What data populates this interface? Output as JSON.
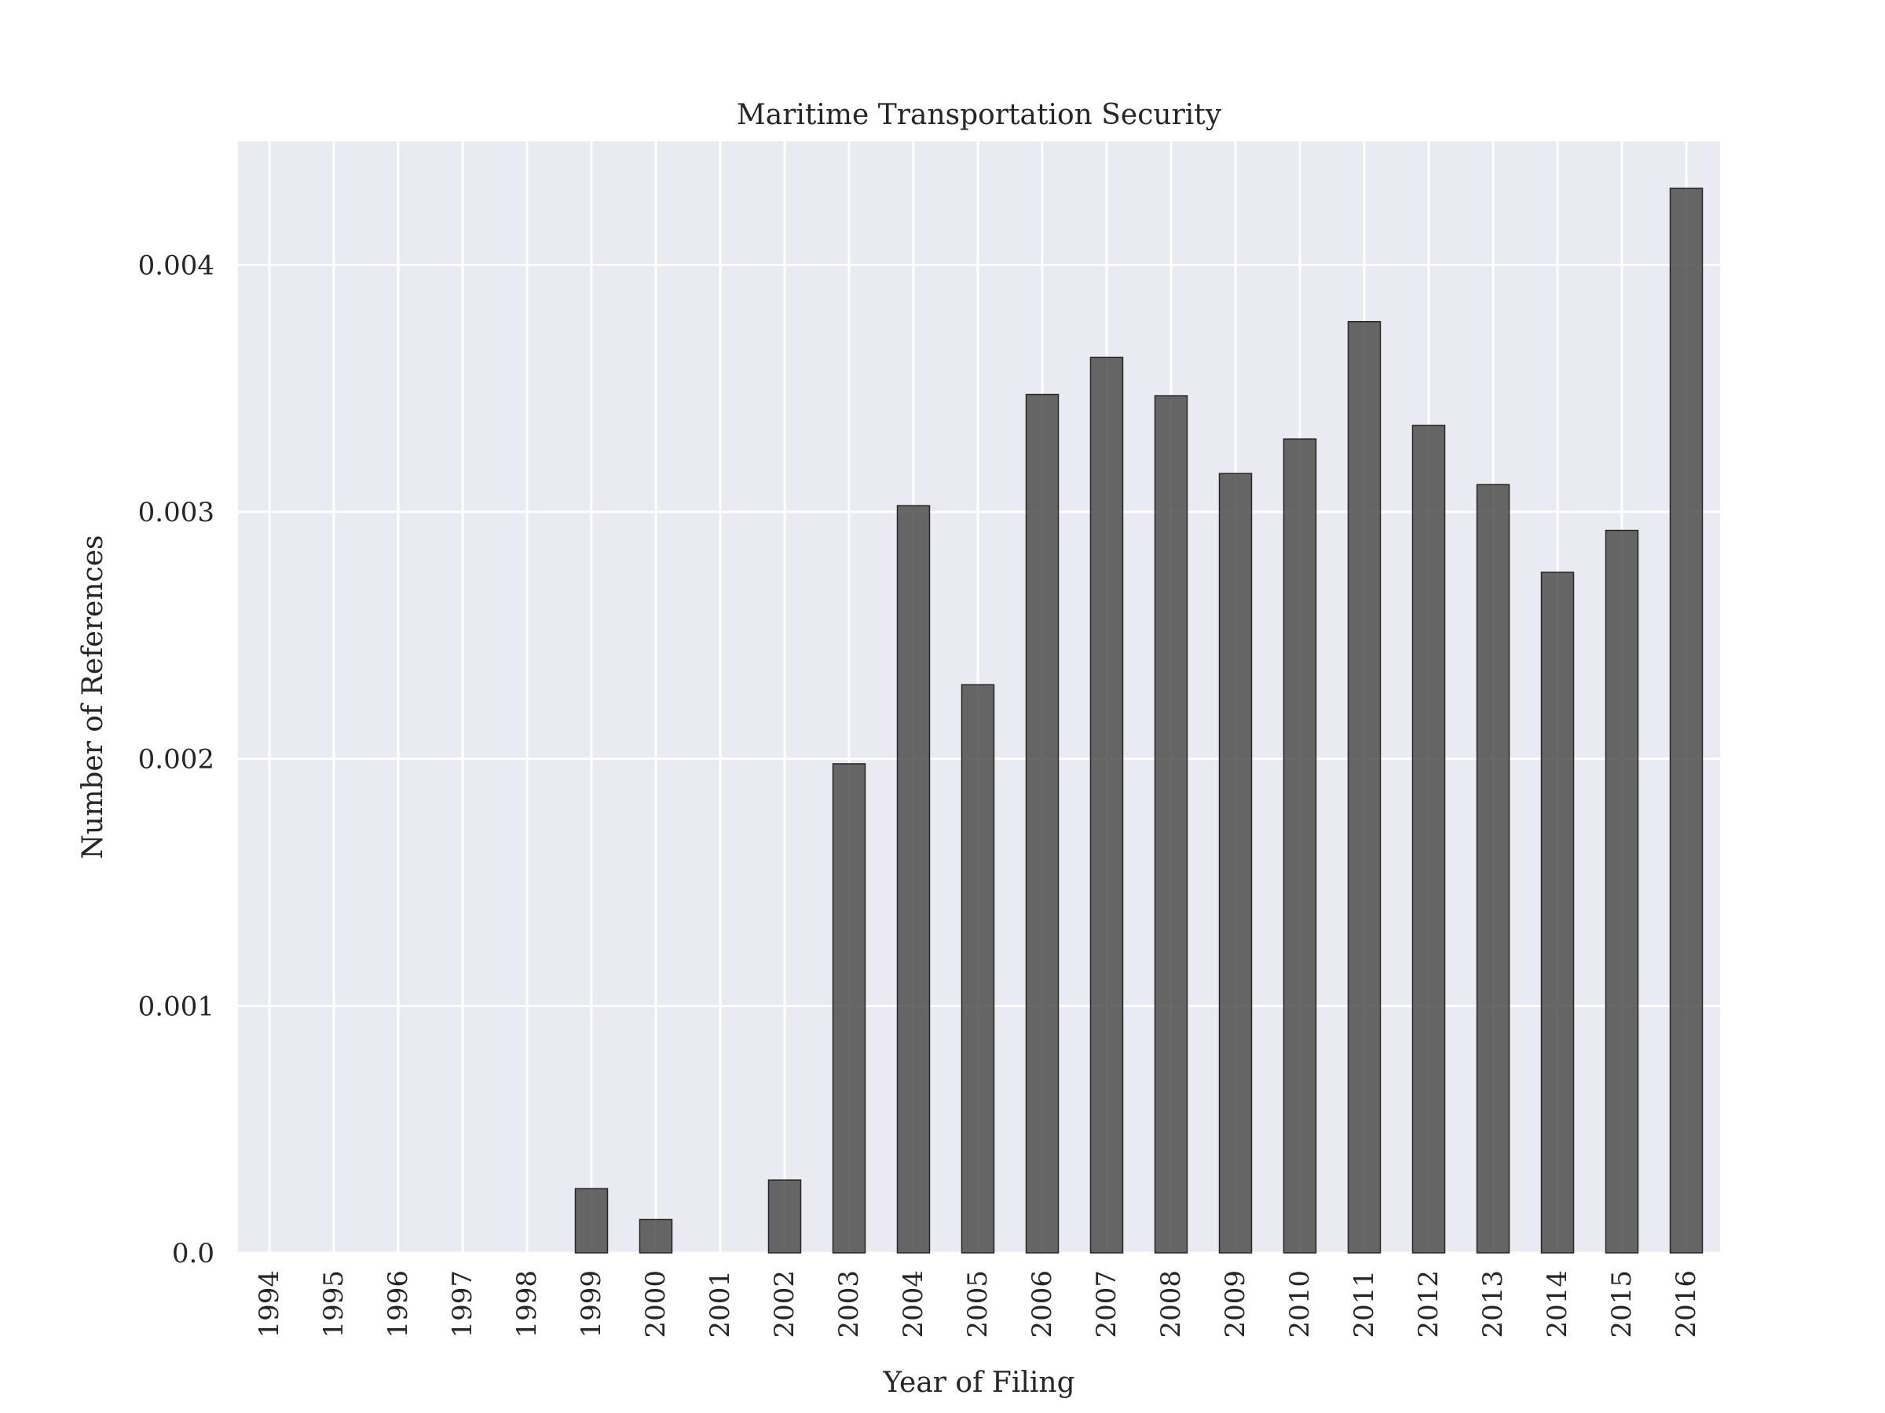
{
  "chart_data": {
    "type": "bar",
    "title": "Maritime Transportation Security",
    "xlabel": "Year of Filing",
    "ylabel": "Number of References",
    "categories": [
      "1994",
      "1995",
      "1996",
      "1997",
      "1998",
      "1999",
      "2000",
      "2001",
      "2002",
      "2003",
      "2004",
      "2005",
      "2006",
      "2007",
      "2008",
      "2009",
      "2010",
      "2011",
      "2012",
      "2013",
      "2014",
      "2015",
      "2016"
    ],
    "values": [
      0,
      0,
      0,
      0,
      0,
      0.00026,
      0.000135,
      0,
      0.000295,
      0.00198,
      0.003025,
      0.0023,
      0.003475,
      0.003625,
      0.00347,
      0.003155,
      0.003295,
      0.00377,
      0.00335,
      0.00311,
      0.002755,
      0.002925,
      0.00431
    ],
    "yticks": [
      0,
      0.001,
      0.002,
      0.003,
      0.004
    ],
    "ytick_labels": [
      "0.0",
      "0.001",
      "0.002",
      "0.003",
      "0.004"
    ],
    "ylim": [
      0,
      0.0045
    ],
    "grid": true,
    "colors": {
      "background": "#eaeaf2",
      "grid": "#ffffff",
      "bar": "#4d4d4d",
      "bar_edge": "#262626",
      "text": "#262626"
    }
  }
}
